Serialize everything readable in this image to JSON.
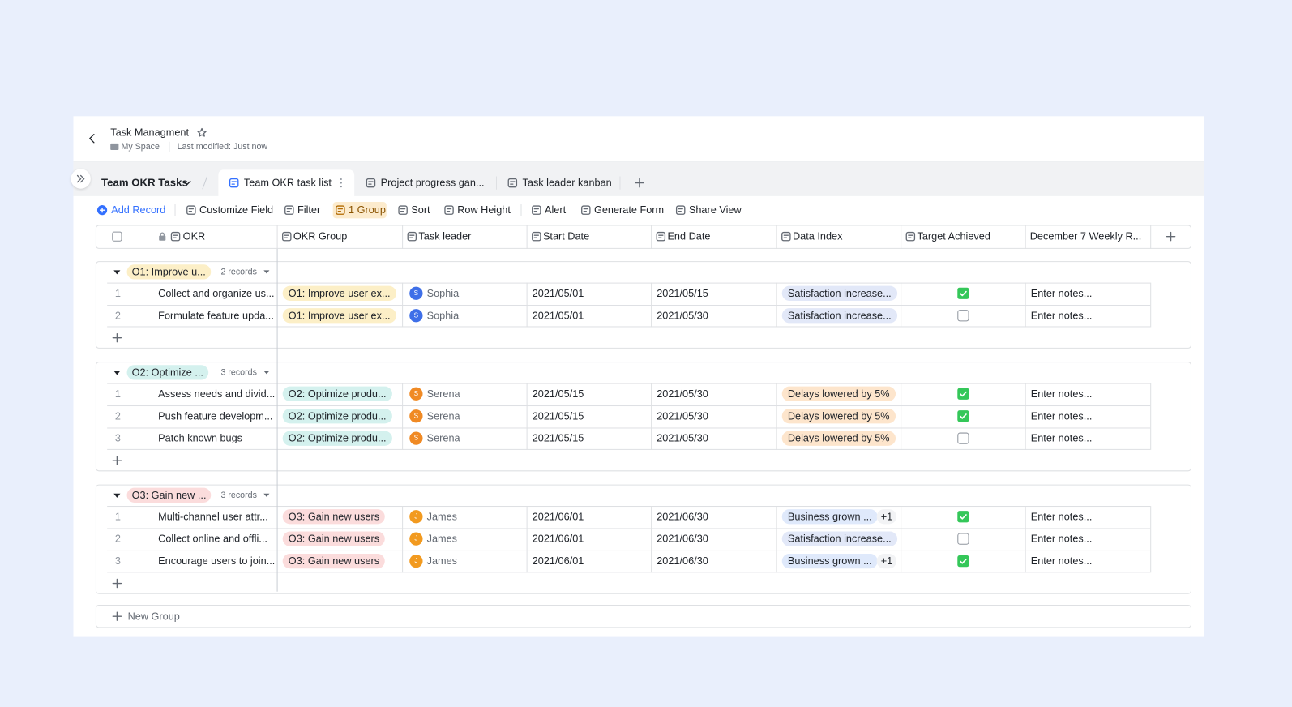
{
  "header": {
    "title": "Task Managment",
    "space": "My Space",
    "last_modified": "Last modified: Just now"
  },
  "tabs": {
    "table": "Team OKR Tasks",
    "views": [
      "Team OKR task list",
      "Project progress gan...",
      "Task leader kanban"
    ]
  },
  "toolbar": [
    "Add Record",
    "Customize Field",
    "Filter",
    "1 Group",
    "Sort",
    "Row Height",
    "Alert",
    "Generate Form",
    "Share View"
  ],
  "columns": [
    "OKR",
    "OKR Group",
    "Task leader",
    "Start Date",
    "End Date",
    "Data Index",
    "Target Achieved",
    "December 7 Weekly R..."
  ],
  "groups": [
    {
      "label": "O1: Improve u...",
      "count": "2 records",
      "color": "#fcefc7",
      "rows": [
        {
          "no": 1,
          "okr": "Collect and organize us...",
          "group": "O1: Improve user ex...",
          "leader": {
            "initial": "S",
            "name": "Sophia",
            "color": "#3e6fe8"
          },
          "start": "2021/05/01",
          "end": "2021/05/15",
          "index": "Satisfaction increase...",
          "index_color": "#e2e8f8",
          "achieved": true,
          "notes": "Enter notes..."
        },
        {
          "no": 2,
          "okr": "Formulate feature upda...",
          "group": "O1: Improve user ex...",
          "leader": {
            "initial": "S",
            "name": "Sophia",
            "color": "#3e6fe8"
          },
          "start": "2021/05/01",
          "end": "2021/05/30",
          "index": "Satisfaction increase...",
          "index_color": "#e2e8f8",
          "achieved": false,
          "notes": "Enter notes..."
        }
      ]
    },
    {
      "label": "O2: Optimize ...",
      "count": "3 records",
      "color": "#d4f1ee",
      "rows": [
        {
          "no": 1,
          "okr": "Assess needs and divid...",
          "group": "O2: Optimize produ...",
          "leader": {
            "initial": "S",
            "name": "Serena",
            "color": "#f08a24"
          },
          "start": "2021/05/15",
          "end": "2021/05/30",
          "index": "Delays lowered by 5%",
          "index_color": "#fde5cc",
          "achieved": true,
          "notes": "Enter notes..."
        },
        {
          "no": 2,
          "okr": "Push feature developm...",
          "group": "O2: Optimize produ...",
          "leader": {
            "initial": "S",
            "name": "Serena",
            "color": "#f08a24"
          },
          "start": "2021/05/15",
          "end": "2021/05/30",
          "index": "Delays lowered by 5%",
          "index_color": "#fde5cc",
          "achieved": true,
          "notes": "Enter notes..."
        },
        {
          "no": 3,
          "okr": "Patch known bugs",
          "group": "O2: Optimize produ...",
          "leader": {
            "initial": "S",
            "name": "Serena",
            "color": "#f08a24"
          },
          "start": "2021/05/15",
          "end": "2021/05/30",
          "index": "Delays lowered by 5%",
          "index_color": "#fde5cc",
          "achieved": false,
          "notes": "Enter notes..."
        }
      ]
    },
    {
      "label": "O3: Gain new ...",
      "count": "3 records",
      "color": "#fbdcdc",
      "rows": [
        {
          "no": 1,
          "okr": "Multi-channel user attr...",
          "group": "O3: Gain new users",
          "leader": {
            "initial": "J",
            "name": "James",
            "color": "#f29a1f"
          },
          "start": "2021/06/01",
          "end": "2021/06/30",
          "index": "Business grown ...",
          "more": "+1",
          "index_color": "#dfe9fb",
          "achieved": true,
          "notes": "Enter notes..."
        },
        {
          "no": 2,
          "okr": "Collect online and offli...",
          "group": "O3: Gain new users",
          "leader": {
            "initial": "J",
            "name": "James",
            "color": "#f29a1f"
          },
          "start": "2021/06/01",
          "end": "2021/06/30",
          "index": "Satisfaction increase...",
          "index_color": "#e2e8f8",
          "achieved": false,
          "notes": "Enter notes..."
        },
        {
          "no": 3,
          "okr": "Encourage users to join...",
          "group": "O3: Gain new users",
          "leader": {
            "initial": "J",
            "name": "James",
            "color": "#f29a1f"
          },
          "start": "2021/06/01",
          "end": "2021/06/30",
          "index": "Business grown ...",
          "more": "+1",
          "index_color": "#dfe9fb",
          "achieved": true,
          "notes": "Enter notes..."
        }
      ]
    }
  ],
  "new_group": "New Group"
}
